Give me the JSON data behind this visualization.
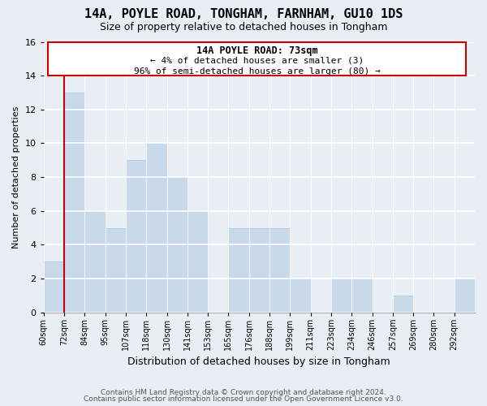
{
  "title": "14A, POYLE ROAD, TONGHAM, FARNHAM, GU10 1DS",
  "subtitle": "Size of property relative to detached houses in Tongham",
  "xlabel": "Distribution of detached houses by size in Tongham",
  "ylabel": "Number of detached properties",
  "bin_labels": [
    "60sqm",
    "72sqm",
    "84sqm",
    "95sqm",
    "107sqm",
    "118sqm",
    "130sqm",
    "141sqm",
    "153sqm",
    "165sqm",
    "176sqm",
    "188sqm",
    "199sqm",
    "211sqm",
    "223sqm",
    "234sqm",
    "246sqm",
    "257sqm",
    "269sqm",
    "280sqm",
    "292sqm"
  ],
  "values": [
    3,
    13,
    6,
    5,
    9,
    10,
    8,
    6,
    0,
    5,
    5,
    5,
    2,
    0,
    2,
    2,
    0,
    1,
    0,
    0,
    2
  ],
  "bar_color": "#c8daea",
  "bar_edge_color": "#a8c4e0",
  "highlight_line_index": 1,
  "annotation_title": "14A POYLE ROAD: 73sqm",
  "annotation_line1": "← 4% of detached houses are smaller (3)",
  "annotation_line2": "96% of semi-detached houses are larger (80) →",
  "annotation_box_color": "#ffffff",
  "annotation_box_edge": "#cc0000",
  "highlight_line_color": "#cc0000",
  "ylim": [
    0,
    16
  ],
  "yticks": [
    0,
    2,
    4,
    6,
    8,
    10,
    12,
    14,
    16
  ],
  "footer1": "Contains HM Land Registry data © Crown copyright and database right 2024.",
  "footer2": "Contains public sector information licensed under the Open Government Licence v3.0.",
  "bg_color": "#e8eef4",
  "plot_bg_color": "#e8eef4"
}
